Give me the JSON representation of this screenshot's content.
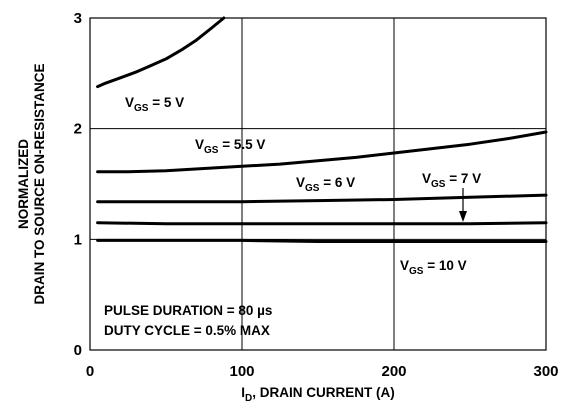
{
  "chart_data": {
    "type": "line",
    "xlabel": {
      "main": "I",
      "sub": "D",
      "rest": ", DRAIN CURRENT (A)"
    },
    "ylabel": [
      "NORMALIZED",
      "DRAIN TO SOURCE ON-RESISTANCE"
    ],
    "xlim": [
      0,
      300
    ],
    "ylim": [
      0,
      3
    ],
    "xticks": [
      "0",
      "100",
      "200",
      "300"
    ],
    "yticks": [
      "0",
      "1",
      "2",
      "3"
    ],
    "grid": true,
    "series": [
      {
        "name": "VGS = 5 V",
        "label": {
          "main": "V",
          "sub": "GS",
          "rest": " = 5 V"
        },
        "x": [
          5,
          10,
          20,
          30,
          40,
          50,
          60,
          70,
          80,
          88
        ],
        "y": [
          2.38,
          2.41,
          2.46,
          2.51,
          2.57,
          2.63,
          2.71,
          2.8,
          2.91,
          3.0
        ]
      },
      {
        "name": "VGS = 5.5 V",
        "label": {
          "main": "V",
          "sub": "GS",
          "rest": " = 5.5 V"
        },
        "x": [
          5,
          25,
          50,
          75,
          100,
          125,
          150,
          175,
          200,
          225,
          250,
          275,
          300
        ],
        "y": [
          1.61,
          1.61,
          1.62,
          1.64,
          1.66,
          1.68,
          1.71,
          1.74,
          1.78,
          1.82,
          1.86,
          1.91,
          1.97
        ]
      },
      {
        "name": "VGS = 6 V",
        "label": {
          "main": "V",
          "sub": "GS",
          "rest": " = 6 V"
        },
        "x": [
          5,
          50,
          100,
          150,
          200,
          250,
          300
        ],
        "y": [
          1.34,
          1.34,
          1.34,
          1.35,
          1.36,
          1.38,
          1.4
        ]
      },
      {
        "name": "VGS = 7 V",
        "label": {
          "main": "V",
          "sub": "GS",
          "rest": " = 7 V"
        },
        "x": [
          5,
          50,
          100,
          150,
          200,
          250,
          300
        ],
        "y": [
          1.15,
          1.14,
          1.14,
          1.14,
          1.14,
          1.14,
          1.15
        ]
      },
      {
        "name": "VGS = 10 V",
        "label": {
          "main": "V",
          "sub": "GS",
          "rest": " = 10 V"
        },
        "x": [
          5,
          50,
          100,
          150,
          200,
          250,
          300
        ],
        "y": [
          0.99,
          0.99,
          0.99,
          0.98,
          0.98,
          0.98,
          0.98
        ]
      }
    ],
    "annotations": [
      "PULSE DURATION = 80 µs",
      "DUTY CYCLE = 0.5% MAX"
    ]
  }
}
